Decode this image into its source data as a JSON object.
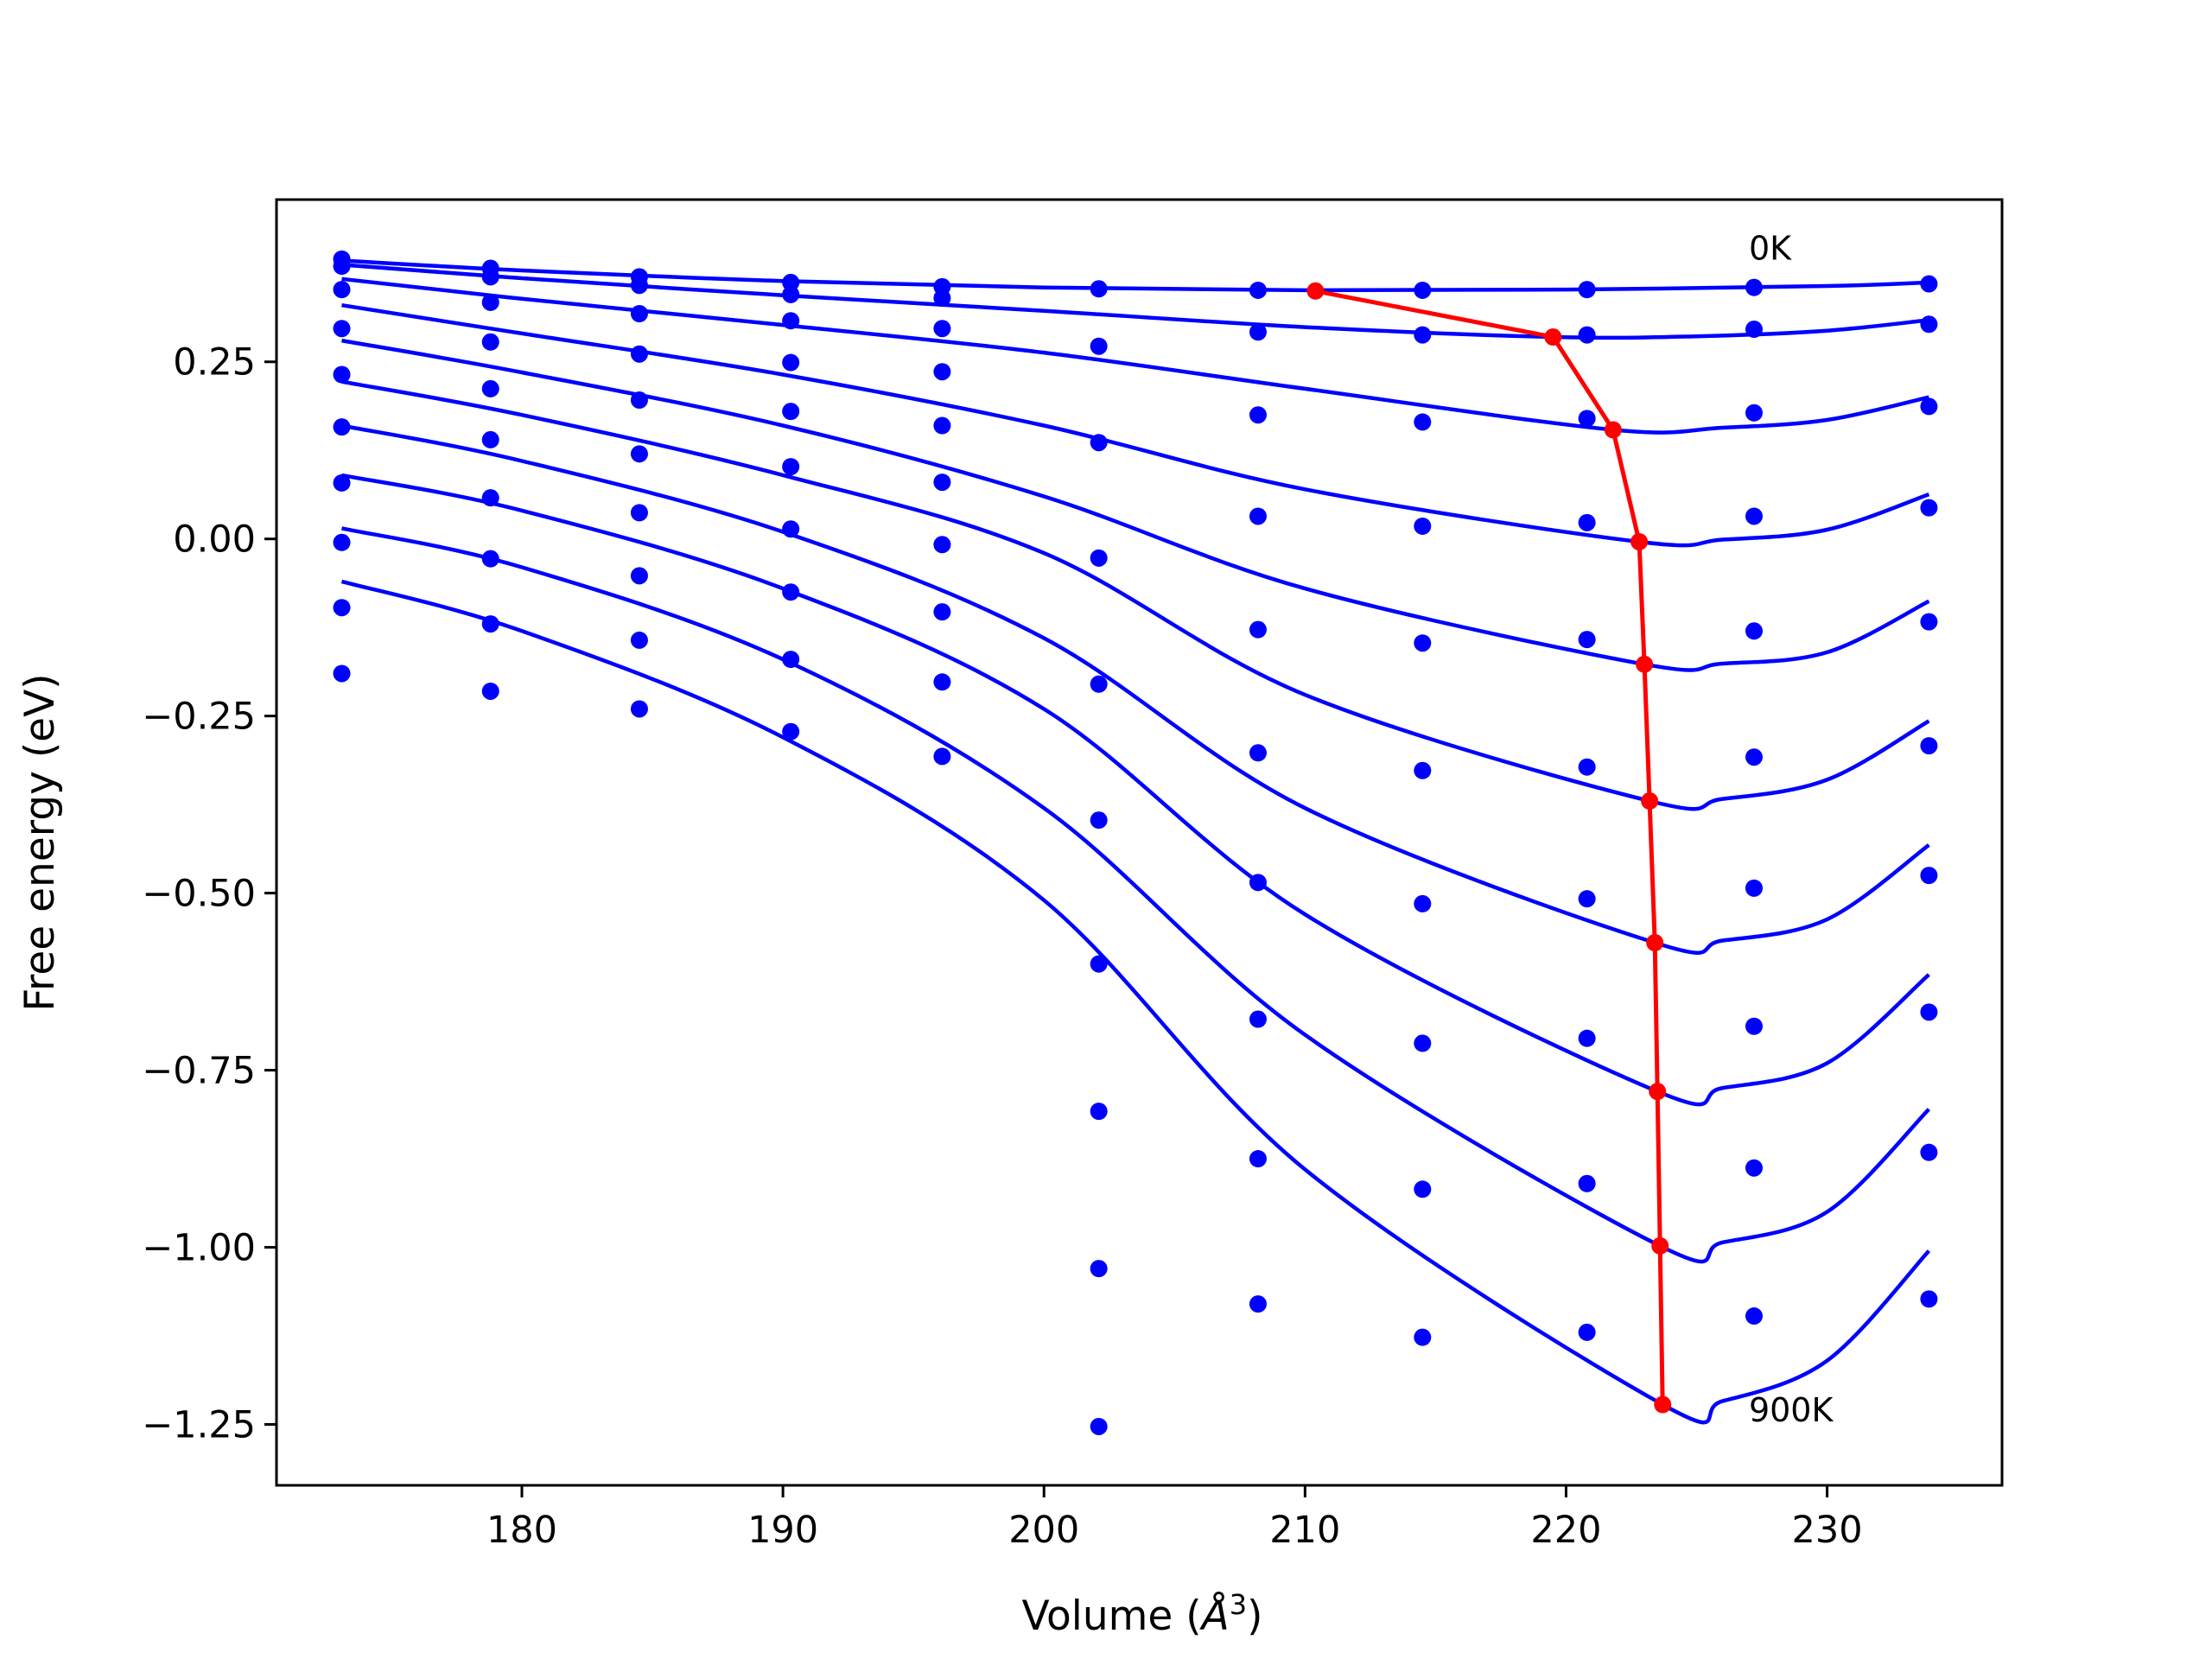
{
  "chart_data": {
    "type": "scatter",
    "title": "",
    "xlabel": "Volume (",
    "xlabel_unit": "Å",
    "xlabel_exp": "3",
    "xlabel_close": ")",
    "ylabel": "Free energy (eV)",
    "xlim": [
      170.6,
      236.7
    ],
    "ylim": [
      -1.336,
      0.479
    ],
    "xticks": [
      180,
      190,
      200,
      210,
      220,
      230
    ],
    "xtick_labels": [
      "180",
      "190",
      "200",
      "210",
      "220",
      "230"
    ],
    "yticks": [
      0.25,
      0.0,
      -0.25,
      -0.5,
      -0.75,
      -1.0,
      -1.25
    ],
    "ytick_labels": [
      "0.25",
      "0.00",
      "−0.25",
      "−0.50",
      "−0.75",
      "−1.00",
      "−1.25"
    ],
    "grid": false,
    "colors": {
      "points": "#0000ff",
      "fits": "#0000ff",
      "minimum_path": "#ff0000",
      "axes": "#000000"
    },
    "annotations": [
      {
        "text": "0K",
        "x": 227.0,
        "y": 0.41
      },
      {
        "text": "900K",
        "x": 227.0,
        "y": -1.23
      }
    ],
    "volumes": [
      173.1,
      178.8,
      184.5,
      190.3,
      196.1,
      202.1,
      208.2,
      214.5,
      220.8,
      227.2,
      233.9
    ],
    "series": [
      {
        "temperature_index": 0,
        "points": [
          0.395,
          0.382,
          0.37,
          0.362,
          0.356,
          0.353,
          0.351,
          0.351,
          0.352,
          0.355,
          0.36
        ],
        "fit": [
          [
            173.1,
            0.393
          ],
          [
            180,
            0.379
          ],
          [
            190,
            0.364
          ],
          [
            200,
            0.355
          ],
          [
            210,
            0.351
          ],
          [
            220,
            0.352
          ],
          [
            230,
            0.357
          ],
          [
            233.9,
            0.362
          ]
        ]
      },
      {
        "temperature_index": 1,
        "points": [
          0.385,
          0.37,
          0.358,
          0.345,
          0.34,
          null,
          0.292,
          0.288,
          0.288,
          0.296,
          0.303
        ],
        "fit": [
          [
            173.1,
            0.387
          ],
          [
            180,
            0.368
          ],
          [
            190,
            0.344
          ],
          [
            200,
            0.322
          ],
          [
            210,
            0.299
          ],
          [
            219.5,
            0.285
          ],
          [
            225,
            0.286
          ],
          [
            230,
            0.294
          ],
          [
            233.9,
            0.309
          ]
        ]
      },
      {
        "temperature_index": 2,
        "points": [
          0.352,
          0.334,
          0.318,
          0.308,
          0.297,
          0.272,
          0.175,
          0.165,
          0.17,
          0.178,
          0.187
        ],
        "fit": [
          [
            173.1,
            0.367
          ],
          [
            180,
            0.339
          ],
          [
            190,
            0.302
          ],
          [
            200,
            0.263
          ],
          [
            210,
            0.212
          ],
          [
            221.8,
            0.154
          ],
          [
            226,
            0.157
          ],
          [
            230,
            0.168
          ],
          [
            233.9,
            0.2
          ]
        ]
      },
      {
        "temperature_index": 3,
        "points": [
          0.297,
          0.278,
          0.261,
          0.249,
          0.236,
          0.136,
          0.032,
          0.018,
          0.023,
          0.032,
          0.044
        ],
        "fit": [
          [
            173.1,
            0.33
          ],
          [
            180,
            0.29
          ],
          [
            190,
            0.232
          ],
          [
            200,
            0.16
          ],
          [
            210,
            0.07
          ],
          [
            222.8,
            -0.004
          ],
          [
            226,
            -0.001
          ],
          [
            230,
            0.013
          ],
          [
            233.9,
            0.063
          ]
        ]
      },
      {
        "temperature_index": 4,
        "points": [
          0.232,
          0.212,
          0.196,
          0.18,
          0.16,
          -0.027,
          -0.128,
          -0.147,
          -0.142,
          -0.13,
          -0.117
        ],
        "fit": [
          [
            173.1,
            0.28
          ],
          [
            180,
            0.235
          ],
          [
            190,
            0.16
          ],
          [
            200,
            0.06
          ],
          [
            210,
            -0.07
          ],
          [
            223.0,
            -0.177
          ],
          [
            226,
            -0.176
          ],
          [
            230,
            -0.16
          ],
          [
            233.9,
            -0.088
          ]
        ]
      },
      {
        "temperature_index": 5,
        "points": [
          0.158,
          0.14,
          0.12,
          0.102,
          0.08,
          -0.205,
          -0.302,
          -0.327,
          -0.322,
          -0.308,
          -0.292
        ],
        "fit": [
          [
            173.1,
            0.222
          ],
          [
            180,
            0.175
          ],
          [
            190,
            0.09
          ],
          [
            200,
            -0.02
          ],
          [
            210,
            -0.22
          ],
          [
            223.2,
            -0.37
          ],
          [
            226,
            -0.367
          ],
          [
            230,
            -0.34
          ],
          [
            233.9,
            -0.257
          ]
        ]
      },
      {
        "temperature_index": 6,
        "points": [
          0.079,
          0.058,
          0.037,
          0.014,
          -0.008,
          -0.397,
          -0.485,
          -0.515,
          -0.508,
          -0.493,
          -0.475
        ],
        "fit": [
          [
            173.1,
            0.16
          ],
          [
            180,
            0.11
          ],
          [
            190,
            0.01
          ],
          [
            200,
            -0.14
          ],
          [
            210,
            -0.38
          ],
          [
            223.4,
            -0.57
          ],
          [
            226,
            -0.567
          ],
          [
            230,
            -0.537
          ],
          [
            233.9,
            -0.432
          ]
        ]
      },
      {
        "temperature_index": 7,
        "points": [
          -0.005,
          -0.028,
          -0.052,
          -0.075,
          -0.103,
          -0.6,
          -0.678,
          -0.712,
          -0.705,
          -0.688,
          -0.668
        ],
        "fit": [
          [
            173.1,
            0.09
          ],
          [
            180,
            0.04
          ],
          [
            190,
            -0.07
          ],
          [
            200,
            -0.24
          ],
          [
            210,
            -0.53
          ],
          [
            223.5,
            -0.78
          ],
          [
            226,
            -0.775
          ],
          [
            230,
            -0.74
          ],
          [
            233.9,
            -0.615
          ]
        ]
      },
      {
        "temperature_index": 8,
        "points": [
          -0.097,
          -0.12,
          -0.143,
          -0.17,
          -0.202,
          -0.808,
          -0.875,
          -0.918,
          -0.91,
          -0.888,
          -0.866
        ],
        "fit": [
          [
            173.1,
            0.015
          ],
          [
            180,
            -0.04
          ],
          [
            190,
            -0.17
          ],
          [
            200,
            -0.38
          ],
          [
            210,
            -0.7
          ],
          [
            223.6,
            -0.998
          ],
          [
            226,
            -0.993
          ],
          [
            230,
            -0.95
          ],
          [
            233.9,
            -0.805
          ]
        ]
      },
      {
        "temperature_index": 9,
        "points": [
          -0.19,
          -0.215,
          -0.24,
          -0.272,
          -0.307,
          -1.03,
          -1.08,
          -1.127,
          -1.12,
          -1.097,
          -1.073
        ],
        "fit": [
          [
            173.1,
            -0.06
          ],
          [
            180,
            -0.13
          ],
          [
            190,
            -0.28
          ],
          [
            200,
            -0.51
          ],
          [
            210,
            -0.89
          ],
          [
            223.7,
            -1.222
          ],
          [
            226,
            -1.217
          ],
          [
            230,
            -1.16
          ],
          [
            233.9,
            -1.005
          ]
        ]
      }
    ],
    "extra_points": [
      {
        "x": 202.1,
        "y": -1.253
      }
    ],
    "minimum_path": [
      [
        210.4,
        0.35
      ],
      [
        219.5,
        0.285
      ],
      [
        221.8,
        0.154
      ],
      [
        222.8,
        -0.004
      ],
      [
        223.0,
        -0.177
      ],
      [
        223.2,
        -0.37
      ],
      [
        223.4,
        -0.57
      ],
      [
        223.5,
        -0.78
      ],
      [
        223.6,
        -0.998
      ],
      [
        223.7,
        -1.222
      ]
    ]
  }
}
